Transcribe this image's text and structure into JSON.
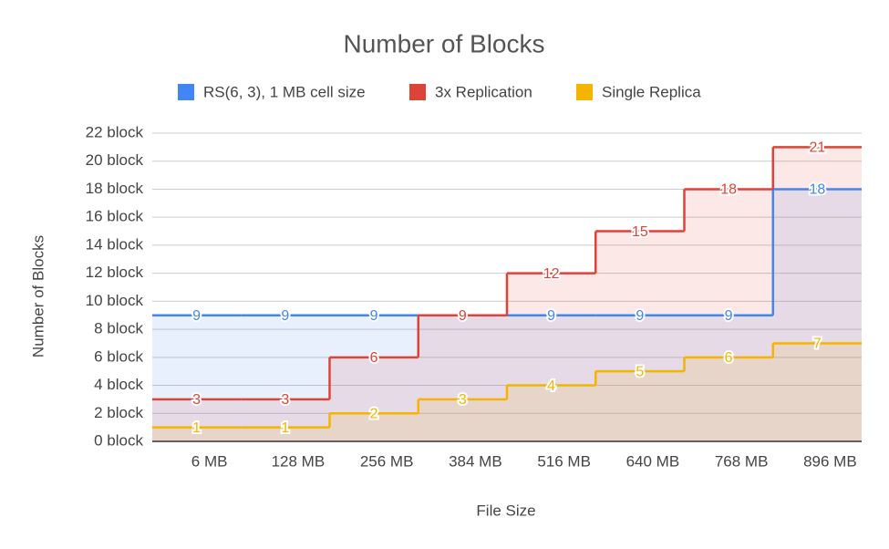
{
  "chart_data": {
    "type": "stepped-area",
    "title": "Number of Blocks",
    "x_label": "File Size",
    "y_label": "Number of Blocks",
    "categories": [
      "6 MB",
      "128 MB",
      "256 MB",
      "384 MB",
      "516 MB",
      "640 MB",
      "768 MB",
      "896 MB"
    ],
    "series": [
      {
        "name": "RS(6, 3), 1 MB cell size",
        "color": "#4285f4",
        "values": [
          9,
          9,
          9,
          9,
          9,
          9,
          9,
          18
        ]
      },
      {
        "name": "3x Replication",
        "color": "#db4437",
        "values": [
          3,
          3,
          6,
          9,
          12,
          15,
          18,
          21
        ]
      },
      {
        "name": "Single Replica",
        "color": "#f4b400",
        "values": [
          1,
          1,
          2,
          3,
          4,
          5,
          6,
          7
        ]
      }
    ],
    "ylim": [
      0,
      22
    ],
    "yticks": [
      {
        "value": 0,
        "label": "0 block"
      },
      {
        "value": 2,
        "label": "2 block"
      },
      {
        "value": 4,
        "label": "4 block"
      },
      {
        "value": 6,
        "label": "6 block"
      },
      {
        "value": 8,
        "label": "8 block"
      },
      {
        "value": 10,
        "label": "10 block"
      },
      {
        "value": 12,
        "label": "12 block"
      },
      {
        "value": 14,
        "label": "14 block"
      },
      {
        "value": 16,
        "label": "16 block"
      },
      {
        "value": 18,
        "label": "18 block"
      },
      {
        "value": 20,
        "label": "20 block"
      },
      {
        "value": 22,
        "label": "22 block"
      }
    ],
    "grid": true,
    "legend": "top"
  }
}
